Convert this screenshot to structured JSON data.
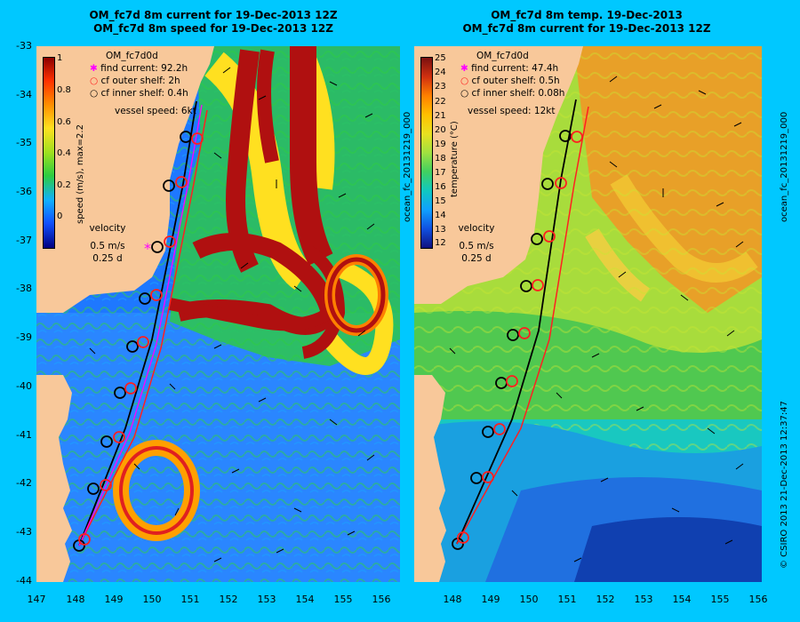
{
  "left_panel": {
    "title_line1": "OM_fc7d 8m current for 19-Dec-2013 12Z",
    "title_line2": "OM_fc7d 8m speed for 19-Dec-2013 12Z",
    "model_label": "OM_fc7d0d",
    "legend": [
      "find current: 92.2h",
      "cf outer shelf: 2h",
      "cf inner shelf: 0.4h"
    ],
    "vessel_speed": "vessel speed: 6kt",
    "colorbar_title": "speed (m/s), max=2.2",
    "colorbar_ticks": [
      "1",
      "0.8",
      "0.6",
      "0.4",
      "0.2",
      "0"
    ],
    "velocity_label": "velocity",
    "velocity_scale": "0.5 m/s",
    "velocity_time": "0.25 d",
    "side_label": "ocean_fc_20131219_000"
  },
  "right_panel": {
    "title_line1": "OM_fc7d 8m temp. 19-Dec-2013",
    "title_line2": "OM_fc7d 8m current for 19-Dec-2013 12Z",
    "model_label": "OM_fc7d0d",
    "legend": [
      "find current: 47.4h",
      "cf outer shelf: 0.5h",
      "cf inner shelf: 0.08h"
    ],
    "vessel_speed": "vessel speed: 12kt",
    "colorbar_title": "temperature (°C)",
    "colorbar_ticks": [
      "25",
      "24",
      "23",
      "22",
      "21",
      "20",
      "19",
      "18",
      "17",
      "16",
      "15",
      "14",
      "13",
      "12"
    ],
    "velocity_label": "velocity",
    "velocity_scale": "0.5 m/s",
    "velocity_time": "0.25 d",
    "side_label": "ocean_fc_20131219_000",
    "copyright": "© CSIRO 2013   21-Dec-2013 12:37:47"
  },
  "axes": {
    "y_ticks": [
      "-33",
      "-34",
      "-35",
      "-36",
      "-37",
      "-38",
      "-39",
      "-40",
      "-41",
      "-42",
      "-43",
      "-44"
    ],
    "x_ticks_left": [
      "147",
      "148",
      "149",
      "150",
      "151",
      "152",
      "153",
      "154",
      "155",
      "156"
    ],
    "x_ticks_right": [
      "148",
      "149",
      "150",
      "151",
      "152",
      "153",
      "154",
      "155",
      "156"
    ]
  },
  "colors": {
    "background": "#00c8ff",
    "land": "#f8c89a",
    "find_current_marker": "#ff00ff",
    "outer_shelf_marker": "#ff2020",
    "inner_shelf_marker": "#000000"
  }
}
